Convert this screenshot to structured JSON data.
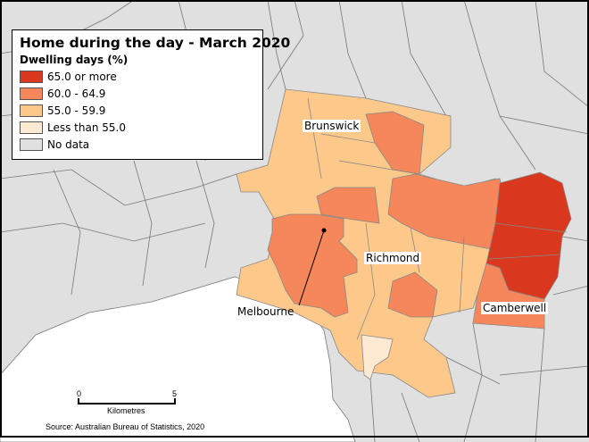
{
  "legend": {
    "title": "Home during the day - March 2020",
    "subtitle": "Dwelling days (%)",
    "items": [
      {
        "label": "65.0 or more",
        "color": "#d9381e"
      },
      {
        "label": "60.0 - 64.9",
        "color": "#f5875a"
      },
      {
        "label": "55.0 - 59.9",
        "color": "#fdc98b"
      },
      {
        "label": "Less than 55.0",
        "color": "#feead3"
      },
      {
        "label": "No data",
        "color": "#e0e0e0"
      }
    ]
  },
  "places": {
    "brunswick": "Brunswick",
    "richmond": "Richmond",
    "camberwell": "Camberwell",
    "melbourne": "Melbourne"
  },
  "scale": {
    "start": "0",
    "end": "5",
    "unit": "Kilometres"
  },
  "source": "Source: Australian Bureau of Statistics, 2020"
}
